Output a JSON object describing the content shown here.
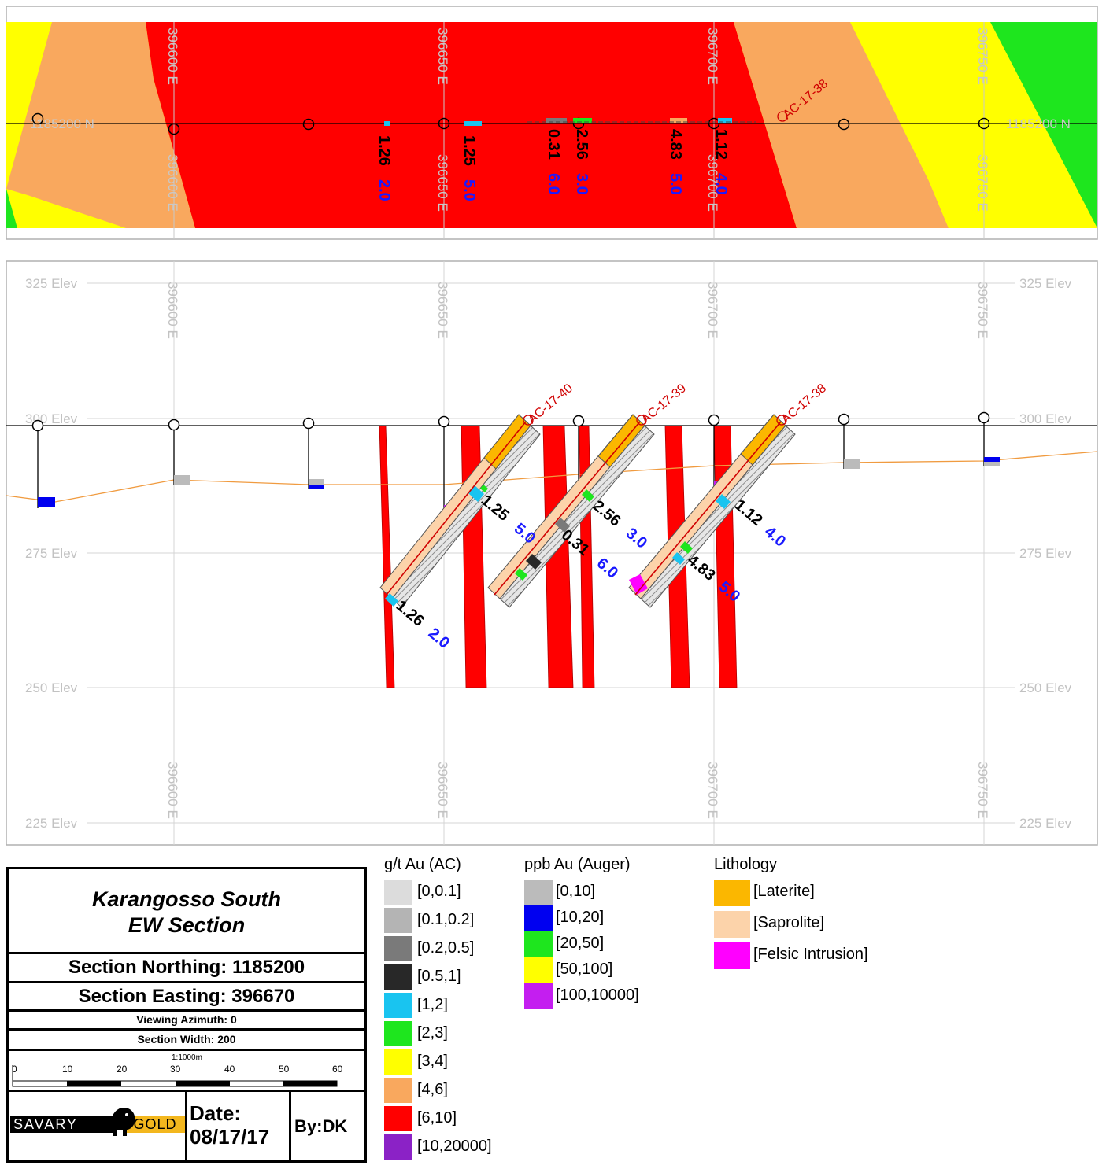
{
  "plan": {
    "easting_labels": [
      "396600 E",
      "396650 E",
      "396700 E",
      "396750 E"
    ],
    "northing_labels": [
      "1185200 N",
      "1185200 N"
    ],
    "hole_label": "AC-17-38",
    "assays": [
      {
        "grade": "1.26",
        "width": "2.0"
      },
      {
        "grade": "1.25",
        "width": "5.0"
      },
      {
        "grade": "0.31",
        "width": "6.0"
      },
      {
        "grade": "2.56",
        "width": "3.0"
      },
      {
        "grade": "4.83",
        "width": "5.0"
      },
      {
        "grade": "1.12",
        "width": "4.0"
      }
    ]
  },
  "section": {
    "elev_labels": [
      "325 Elev",
      "300 Elev",
      "275 Elev",
      "250 Elev",
      "225 Elev"
    ],
    "easting_labels": [
      "396600 E",
      "396650 E",
      "396700 E",
      "396750 E"
    ],
    "hole_labels": [
      "AC-17-40",
      "AC-17-39",
      "AC-17-38"
    ],
    "assays": [
      {
        "grade": "1.25",
        "width": "5.0"
      },
      {
        "grade": "1.26",
        "width": "2.0"
      },
      {
        "grade": "2.56",
        "width": "3.0"
      },
      {
        "grade": "0.31",
        "width": "6.0"
      },
      {
        "grade": "1.12",
        "width": "4.0"
      },
      {
        "grade": "4.83",
        "width": "5.0"
      }
    ]
  },
  "title_block": {
    "title_line1": "Karangosso South",
    "title_line2": "EW Section",
    "northing": "Section Northing: 1185200",
    "easting": "Section Easting: 396670",
    "azimuth": "Viewing Azimuth: 0",
    "width": "Section Width: 200",
    "scale_label": "1:1000m",
    "scale_ticks": [
      "0",
      "10",
      "20",
      "30",
      "40",
      "50",
      "60"
    ],
    "logo_left": "SAVARY",
    "logo_right": "GOLD",
    "date_label": "Date:",
    "date_value": "08/17/17",
    "by": "By:DK"
  },
  "legend_ac": {
    "title": "g/t Au (AC)",
    "items": [
      {
        "label": "[0,0.1]",
        "color": "#dcdcdc"
      },
      {
        "label": "[0.1,0.2]",
        "color": "#b4b4b4"
      },
      {
        "label": "[0.2,0.5]",
        "color": "#7a7a7a"
      },
      {
        "label": "[0.5,1]",
        "color": "#282828"
      },
      {
        "label": "[1,2]",
        "color": "#19c4f0"
      },
      {
        "label": "[2,3]",
        "color": "#1ee61e"
      },
      {
        "label": "[3,4]",
        "color": "#ffff00"
      },
      {
        "label": "[4,6]",
        "color": "#f9a85e"
      },
      {
        "label": "[6,10]",
        "color": "#ff0000"
      },
      {
        "label": "[10,20000]",
        "color": "#8b22c6"
      }
    ]
  },
  "legend_auger": {
    "title": "ppb Au (Auger)",
    "items": [
      {
        "label": "[0,10]",
        "color": "#bbbbbb"
      },
      {
        "label": "[10,20]",
        "color": "#0000f0"
      },
      {
        "label": "[20,50]",
        "color": "#1ee61e"
      },
      {
        "label": "[50,100]",
        "color": "#ffff00"
      },
      {
        "label": "[100,10000]",
        "color": "#c41ef0"
      }
    ]
  },
  "legend_lith": {
    "title": "Lithology",
    "items": [
      {
        "label": "[Laterite]",
        "color": "#fbb700"
      },
      {
        "label": "[Saprolite]",
        "color": "#fcd3aa"
      },
      {
        "label": "[Felsic Intrusion]",
        "color": "#ff00ff"
      }
    ]
  }
}
